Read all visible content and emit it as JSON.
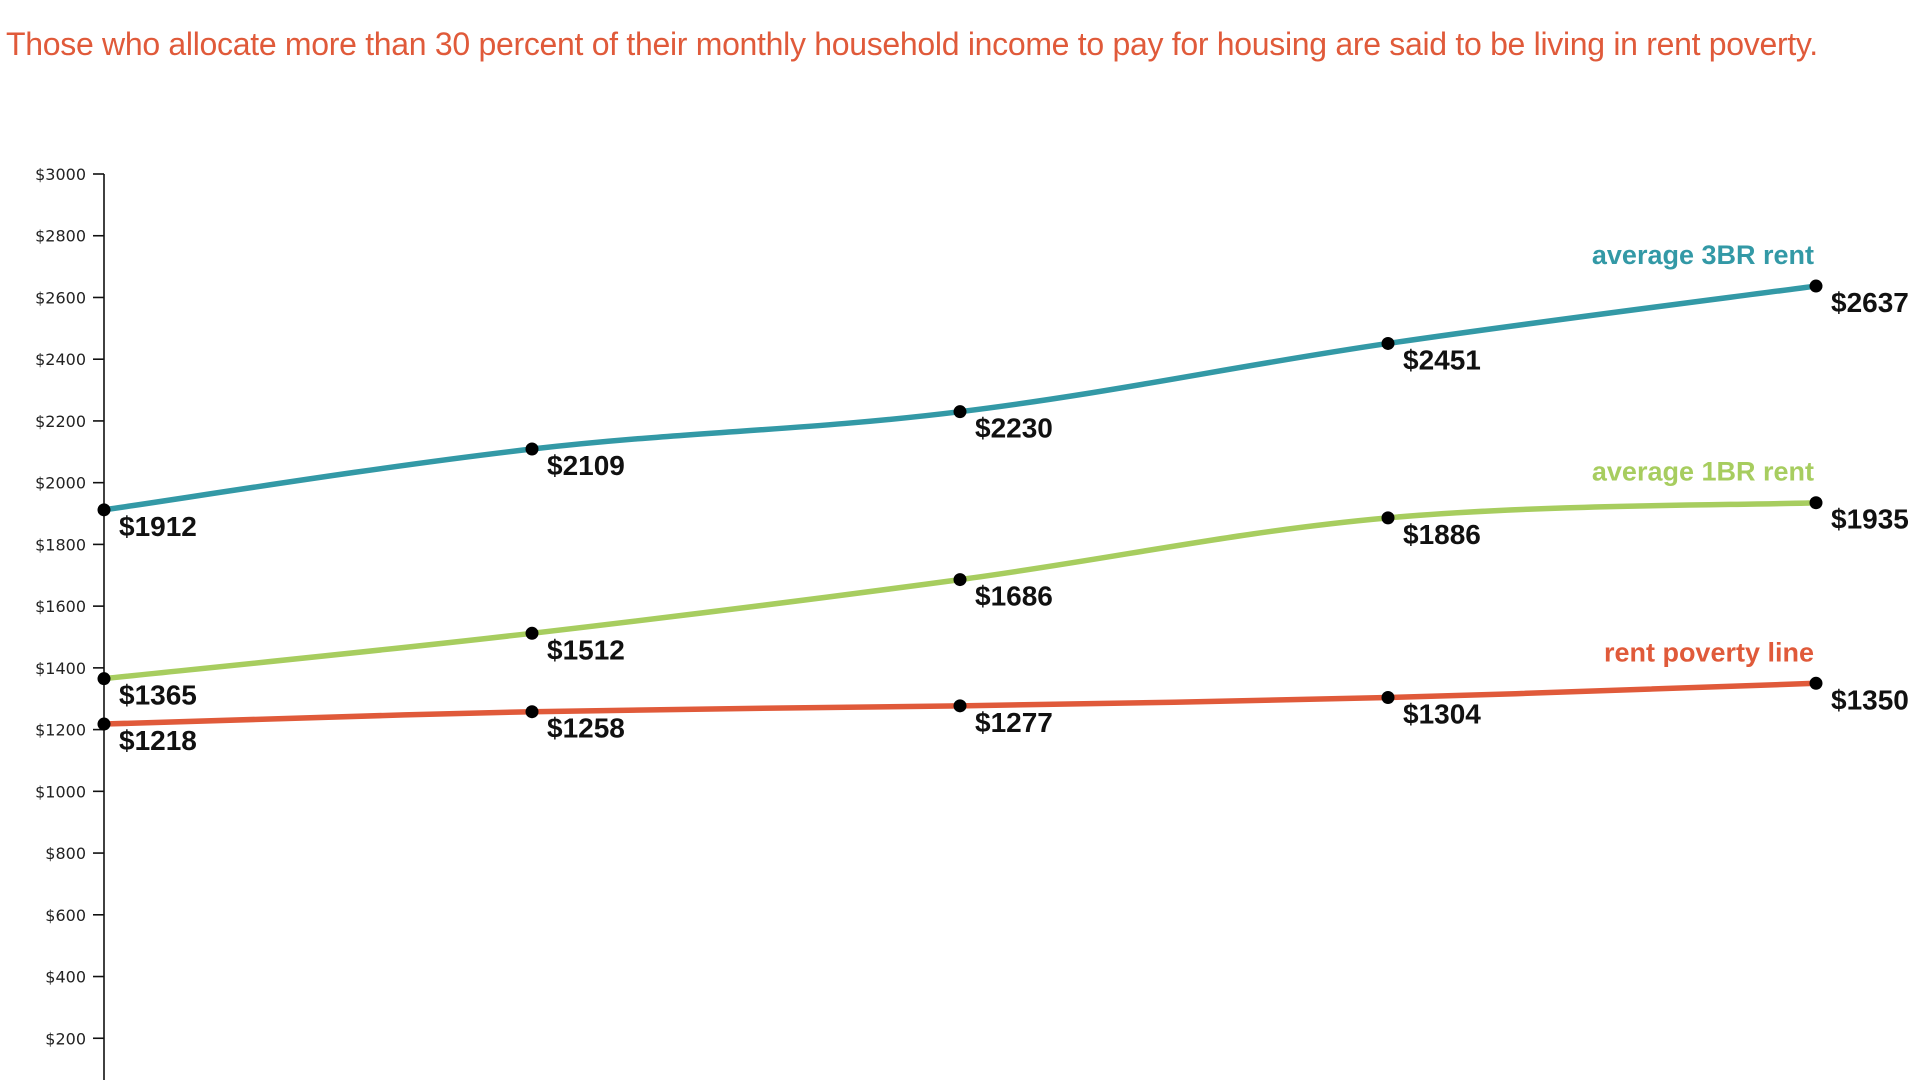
{
  "chart_data": {
    "type": "line",
    "title": "Those who allocate more than 30 percent of their monthly household income to pay for housing are said to be living in rent poverty.",
    "title_color": "#e05a3a",
    "xlabel": "",
    "ylabel": "",
    "ylim": [
      0,
      3000
    ],
    "y_ticks": [
      {
        "value": 200,
        "label": "$200"
      },
      {
        "value": 400,
        "label": "$400"
      },
      {
        "value": 600,
        "label": "$600"
      },
      {
        "value": 800,
        "label": "$800"
      },
      {
        "value": 1000,
        "label": "$1000"
      },
      {
        "value": 1200,
        "label": "$1200"
      },
      {
        "value": 1400,
        "label": "$1400"
      },
      {
        "value": 1600,
        "label": "$1600"
      },
      {
        "value": 1800,
        "label": "$1800"
      },
      {
        "value": 2000,
        "label": "$2000"
      },
      {
        "value": 2200,
        "label": "$2200"
      },
      {
        "value": 2400,
        "label": "$2400"
      },
      {
        "value": 2600,
        "label": "$2600"
      },
      {
        "value": 2800,
        "label": "$2800"
      },
      {
        "value": 3000,
        "label": "$3000"
      }
    ],
    "grid": false,
    "legend": "inline-labels-at-end",
    "series": [
      {
        "name": "average 3BR rent",
        "color": "#3399a6",
        "values": [
          1912,
          2109,
          2230,
          2451,
          2637
        ],
        "labels": [
          "$1912",
          "$2109",
          "$2230",
          "$2451",
          "$2637"
        ]
      },
      {
        "name": "average 1BR rent",
        "color": "#a7cd5f",
        "values": [
          1365,
          1512,
          1686,
          1886,
          1935
        ],
        "labels": [
          "$1365",
          "$1512",
          "$1686",
          "$1886",
          "$1935"
        ]
      },
      {
        "name": "rent poverty line",
        "color": "#e05a3a",
        "values": [
          1218,
          1258,
          1277,
          1304,
          1350
        ],
        "labels": [
          "$1218",
          "$1258",
          "$1277",
          "$1304",
          "$1350"
        ]
      }
    ]
  }
}
